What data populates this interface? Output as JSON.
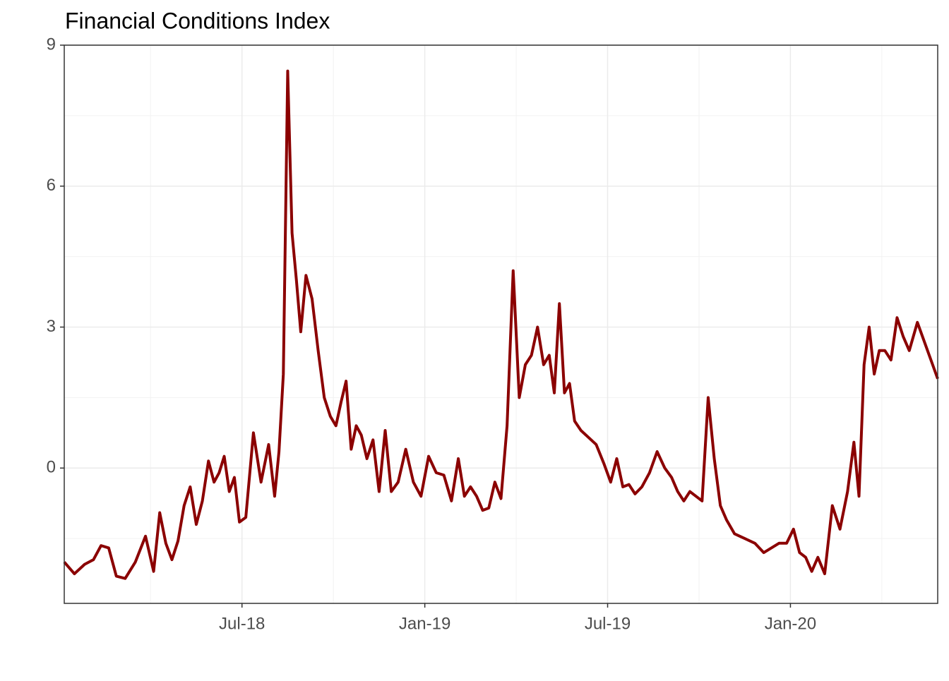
{
  "chart_data": {
    "type": "line",
    "title": "Financial Conditions Index",
    "x": [
      "2018-01",
      "2018-01",
      "2018-01",
      "2018-02",
      "2018-02",
      "2018-02",
      "2018-02",
      "2018-03",
      "2018-03",
      "2018-03",
      "2018-04",
      "2018-04",
      "2018-04",
      "2018-04",
      "2018-04",
      "2018-05",
      "2018-05",
      "2018-05",
      "2018-05",
      "2018-05",
      "2018-06",
      "2018-06",
      "2018-06",
      "2018-06",
      "2018-06",
      "2018-06",
      "2018-07",
      "2018-07",
      "2018-07",
      "2018-07",
      "2018-08",
      "2018-08",
      "2018-08",
      "2018-08",
      "2018-08",
      "2018-08",
      "2018-08",
      "2018-09",
      "2018-09",
      "2018-09",
      "2018-09",
      "2018-09",
      "2018-10",
      "2018-10",
      "2018-10",
      "2018-10",
      "2018-10",
      "2018-10",
      "2018-11",
      "2018-11",
      "2018-11",
      "2018-11",
      "2018-11",
      "2018-12",
      "2018-12",
      "2018-12",
      "2018-12",
      "2019-01",
      "2019-01",
      "2019-01",
      "2019-01",
      "2019-02",
      "2019-02",
      "2019-02",
      "2019-02",
      "2019-02",
      "2019-03",
      "2019-03",
      "2019-03",
      "2019-03",
      "2019-03",
      "2019-04",
      "2019-04",
      "2019-04",
      "2019-04",
      "2019-04",
      "2019-05",
      "2019-05",
      "2019-05",
      "2019-05",
      "2019-05",
      "2019-05",
      "2019-06",
      "2019-06",
      "2019-06",
      "2019-06",
      "2019-07",
      "2019-07",
      "2019-07",
      "2019-07",
      "2019-07",
      "2019-08",
      "2019-08",
      "2019-08",
      "2019-08",
      "2019-09",
      "2019-09",
      "2019-09",
      "2019-09",
      "2019-09",
      "2019-10",
      "2019-10",
      "2019-10",
      "2019-10",
      "2019-10",
      "2019-11",
      "2019-11",
      "2019-11",
      "2019-12",
      "2019-12",
      "2019-12",
      "2019-12",
      "2020-01",
      "2020-01",
      "2020-01",
      "2020-01",
      "2020-01",
      "2020-02",
      "2020-02",
      "2020-02",
      "2020-02",
      "2020-03",
      "2020-03",
      "2020-03",
      "2020-03",
      "2020-03",
      "2020-03",
      "2020-04",
      "2020-04",
      "2020-04",
      "2020-04",
      "2020-04",
      "2020-05",
      "2020-05",
      "2020-05"
    ],
    "values": [
      -2.0,
      -2.25,
      -2.05,
      -1.95,
      -1.65,
      -1.7,
      -2.3,
      -2.35,
      -2.0,
      -1.45,
      -2.2,
      -0.95,
      -1.6,
      -1.95,
      -1.55,
      -0.8,
      -0.4,
      -1.2,
      -0.7,
      0.15,
      -0.3,
      -0.1,
      0.25,
      -0.5,
      -0.2,
      -1.15,
      -1.05,
      0.75,
      -0.3,
      0.5,
      -0.6,
      0.35,
      2.0,
      8.45,
      5.0,
      4.0,
      2.9,
      4.1,
      3.6,
      2.5,
      1.5,
      1.1,
      0.9,
      1.4,
      1.85,
      0.4,
      0.9,
      0.7,
      0.2,
      0.6,
      -0.5,
      0.8,
      -0.5,
      -0.3,
      0.4,
      -0.3,
      -0.6,
      0.25,
      -0.1,
      -0.15,
      -0.7,
      0.2,
      -0.6,
      -0.4,
      -0.6,
      -0.9,
      -0.85,
      -0.3,
      -0.65,
      0.9,
      4.2,
      1.5,
      2.2,
      2.4,
      3.0,
      2.2,
      2.4,
      1.6,
      3.5,
      1.6,
      1.8,
      1.0,
      0.8,
      0.65,
      0.5,
      0.1,
      -0.3,
      0.2,
      -0.4,
      -0.35,
      -0.55,
      -0.4,
      -0.1,
      0.35,
      0.0,
      -0.2,
      -0.5,
      -0.7,
      -0.5,
      -0.6,
      -0.7,
      1.5,
      0.2,
      -0.8,
      -1.1,
      -1.4,
      -1.5,
      -1.6,
      -1.8,
      -1.7,
      -1.6,
      -1.6,
      -1.3,
      -1.8,
      -1.9,
      -2.2,
      -1.9,
      -2.25,
      -0.8,
      -1.3,
      -0.5,
      0.55,
      -0.6,
      2.2,
      3.0,
      2.0,
      2.5,
      2.5,
      2.3,
      3.2,
      2.8,
      2.5,
      3.1,
      2.5,
      1.9
    ],
    "color": "#8b0000",
    "ylim": [
      -2.88,
      9
    ],
    "yticks": [
      0,
      3,
      6,
      9
    ],
    "xticks": [
      {
        "value": "2018-07",
        "label": "Jul-18"
      },
      {
        "value": "2019-01",
        "label": "Jan-19"
      },
      {
        "value": "2019-07",
        "label": "Jul-19"
      },
      {
        "value": "2020-01",
        "label": "Jan-20"
      }
    ],
    "grid": true
  }
}
